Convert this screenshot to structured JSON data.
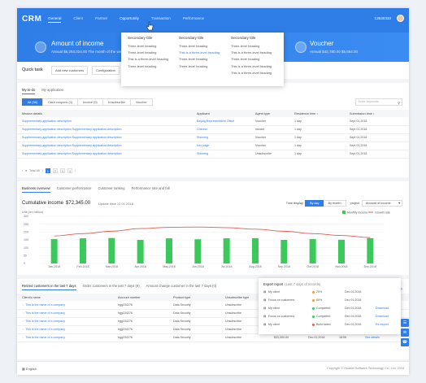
{
  "app": {
    "logo": "CRM",
    "phone": "13530333"
  },
  "nav": [
    "General",
    "Client",
    "Partner",
    "Opportunity",
    "Transaction",
    "Performance"
  ],
  "banner": {
    "left": {
      "title": "Amount of income",
      "sub": "Annual $6,293,024.00  The month of the week $"
    },
    "right": {
      "title": "Voucher",
      "sub": "Annual $42,780.00    $5,664.00"
    }
  },
  "dropdown": {
    "cols": [
      {
        "title": "Secondary title",
        "items": [
          "Three-level heading",
          "Three-level heading",
          "This is a three-level heading",
          "Three-level heading"
        ]
      },
      {
        "title": "Secondary title",
        "items": [
          "Three-level heading",
          "This is a three-level heading",
          "Three-level heading",
          "Three-level heading"
        ]
      },
      {
        "title": "Secondary title",
        "items": [
          "Three-level heading",
          "This is a three-level heading",
          "Three-level heading",
          "This is a three-level heading",
          "This is a three-level heading"
        ]
      }
    ]
  },
  "quick": {
    "title": "Quick task",
    "buttons": [
      "Add new customers",
      "Configuration"
    ]
  },
  "todo": {
    "tabs": [
      "My to-do",
      "My application"
    ],
    "segments": [
      "All (36)",
      "Cash coupons (0)",
      "Invoice (0)",
      "Unsubscribe",
      "Voucher"
    ],
    "search_placeholder": "Enter keywords",
    "columns": [
      "Mission details",
      "Applicant",
      "Agent type",
      "Residence time ↕",
      "Submission time ↕"
    ],
    "rows": [
      [
        "Supplementary application description",
        "Beijing Representative Office",
        "Voucher",
        "1 day",
        "Sept 01,2018"
      ],
      [
        "Supplementary application description Supplementary application description",
        "Chinese",
        "invoice",
        "1 day",
        "Sept 01,2018"
      ],
      [
        "Supplementary application description Supplementary application description",
        "Shimeng",
        "Voucher",
        "1 day",
        "Sept 01,2018"
      ],
      [
        "Supplementary application description Supplementary application description",
        "Key page",
        "Voucher",
        "1 day",
        "Sept 01,2018"
      ],
      [
        "Supplementary application description Supplementary application description",
        "Shimeng",
        "Unsubscribe",
        "1 day",
        "Sept 01,2018"
      ]
    ],
    "pager": {
      "total": "Total 48",
      "pages": [
        "1",
        "2",
        "3",
        "4"
      ]
    }
  },
  "chart_section": {
    "tabs": [
      "Business overview",
      "Customer performance",
      "Customer ranking",
      "Performance rate and fall"
    ],
    "title": "Cumulative income",
    "amount": "$72,345.00",
    "update": "Update date 12.01.2018",
    "time_label": "Time display",
    "by_day": "By day",
    "by_month": "By month",
    "project_label": "project",
    "project_value": "Amount of income",
    "unit": "Unit:(ten million)"
  },
  "chart_data": {
    "type": "bar",
    "categories": [
      "Jan.2018",
      "Feb.2018",
      "Mar.2018",
      "Apr.2018",
      "May.2018",
      "Jun.2018",
      "Jul.2018",
      "Aug.2018",
      "Sep.2018",
      "Oct.2018",
      "Nov.2018",
      "Dec.2018"
    ],
    "series": [
      {
        "name": "Monthly income",
        "type": "bar",
        "color": "#3cc95b",
        "values": [
          155,
          160,
          162,
          150,
          160,
          154,
          160,
          161,
          150,
          155,
          151,
          161
        ]
      },
      {
        "name": "Growth rate",
        "type": "line",
        "color": "#e05e52",
        "values": [
          175,
          190,
          205,
          222,
          230,
          232,
          228,
          218,
          205,
          190,
          178,
          165
        ]
      }
    ],
    "ylim": [
      0,
      300
    ],
    "yticks": [
      0,
      50,
      100,
      150,
      200,
      250,
      300
    ]
  },
  "customers": {
    "tabs": [
      "Retired customers in the last 7 days",
      "Order customers in the last 7 days (9)",
      "Amount change customer in the last 7 days (0)"
    ],
    "columns": [
      "Client's name",
      "Account number",
      "Product type",
      "Unsubscribe type"
    ],
    "rows": [
      [
        "This is the name of a company",
        "hgg234276",
        "Data Security",
        "Unsubscribe",
        "",
        "",
        "",
        ""
      ],
      [
        "This is the name of a company",
        "hgg234276",
        "Data Security",
        "Unsubscribe",
        "",
        "",
        "",
        ""
      ],
      [
        "This is the name of a company",
        "hgg234276",
        "Data Security",
        "Unsubscribe",
        "",
        "",
        "",
        ""
      ],
      [
        "This is the name of a company",
        "hgg234276",
        "Data Security",
        "Unsubscribe",
        "$33,300.00",
        "Dec 01,2018",
        "18:55",
        "See details"
      ],
      [
        "This is the name of a company",
        "hgg234276",
        "Data Security",
        "Unsubscribe",
        "$33,300.00",
        "Dec 01,2018",
        "18:55",
        "See details"
      ]
    ]
  },
  "popup": {
    "title": "Export report",
    "sub": "(Last 7 days of records)",
    "rows": [
      {
        "name": "My client",
        "status": "20%",
        "status_color": "#f0a030",
        "date": "Dec 01,2018",
        "action": ""
      },
      {
        "name": "Focus on customers",
        "status": "80%",
        "status_color": "#f0a030",
        "date": "Dec 01,2018",
        "action": ""
      },
      {
        "name": "My client",
        "status": "Completed",
        "status_color": "#3cc95b",
        "date": "Dec 01,2018",
        "action": "Download"
      },
      {
        "name": "Focus on customers",
        "status": "Completed",
        "status_color": "#3cc95b",
        "date": "Dec 01,2018",
        "action": "Download"
      },
      {
        "name": "My client",
        "status": "Build failed",
        "status_color": "#e05e52",
        "date": "Dec 01,2018",
        "action": "Re-export"
      }
    ]
  },
  "footer": {
    "lang": "English",
    "copyright": "Copyright © Huawei Software Technology Co., Ltd. 2018"
  }
}
